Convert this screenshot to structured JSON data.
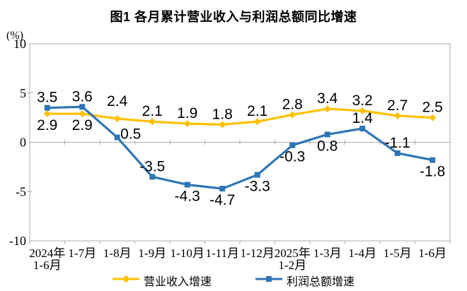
{
  "chart_data": {
    "type": "line",
    "title": "图1 各月累计营业收入与利润总额同比增速",
    "unit_label": "(%)",
    "categories": [
      [
        "2024年",
        "1-6月"
      ],
      [
        "1-7月"
      ],
      [
        "1-8月"
      ],
      [
        "1-9月"
      ],
      [
        "1-10月"
      ],
      [
        "1-11月"
      ],
      [
        "1-12月"
      ],
      [
        "2025年",
        "1-2月"
      ],
      [
        "1-3月"
      ],
      [
        "1-4月"
      ],
      [
        "1-5月"
      ],
      [
        "1-6月"
      ]
    ],
    "y_ticks": [
      10,
      5,
      0,
      -5,
      -10
    ],
    "ylim": [
      -10,
      10
    ],
    "grid": "zero-line-only",
    "legend_position": "bottom",
    "axis_color": "#ACACAC",
    "text_color": "#000000",
    "series": [
      {
        "name": "营业收入增速",
        "color": "#FFC000",
        "marker": "diamond",
        "values": [
          2.9,
          2.9,
          2.4,
          2.1,
          1.9,
          1.8,
          2.1,
          2.8,
          3.4,
          3.2,
          2.7,
          2.5
        ],
        "label_positions": [
          "below",
          "below",
          "above-high",
          "above",
          "above",
          "above",
          "above",
          "above",
          "above",
          "above",
          "above",
          "above"
        ]
      },
      {
        "name": "利润总额增速",
        "color": "#2E75B6",
        "marker": "square",
        "values": [
          3.5,
          3.6,
          0.5,
          -3.5,
          -4.3,
          -4.7,
          -3.3,
          -0.3,
          0.8,
          1.4,
          -1.1,
          -1.8
        ],
        "label_positions": [
          "above",
          "above",
          "right",
          "above",
          "below",
          "below",
          "below",
          "below",
          "below",
          "above",
          "above",
          "below"
        ]
      }
    ]
  }
}
